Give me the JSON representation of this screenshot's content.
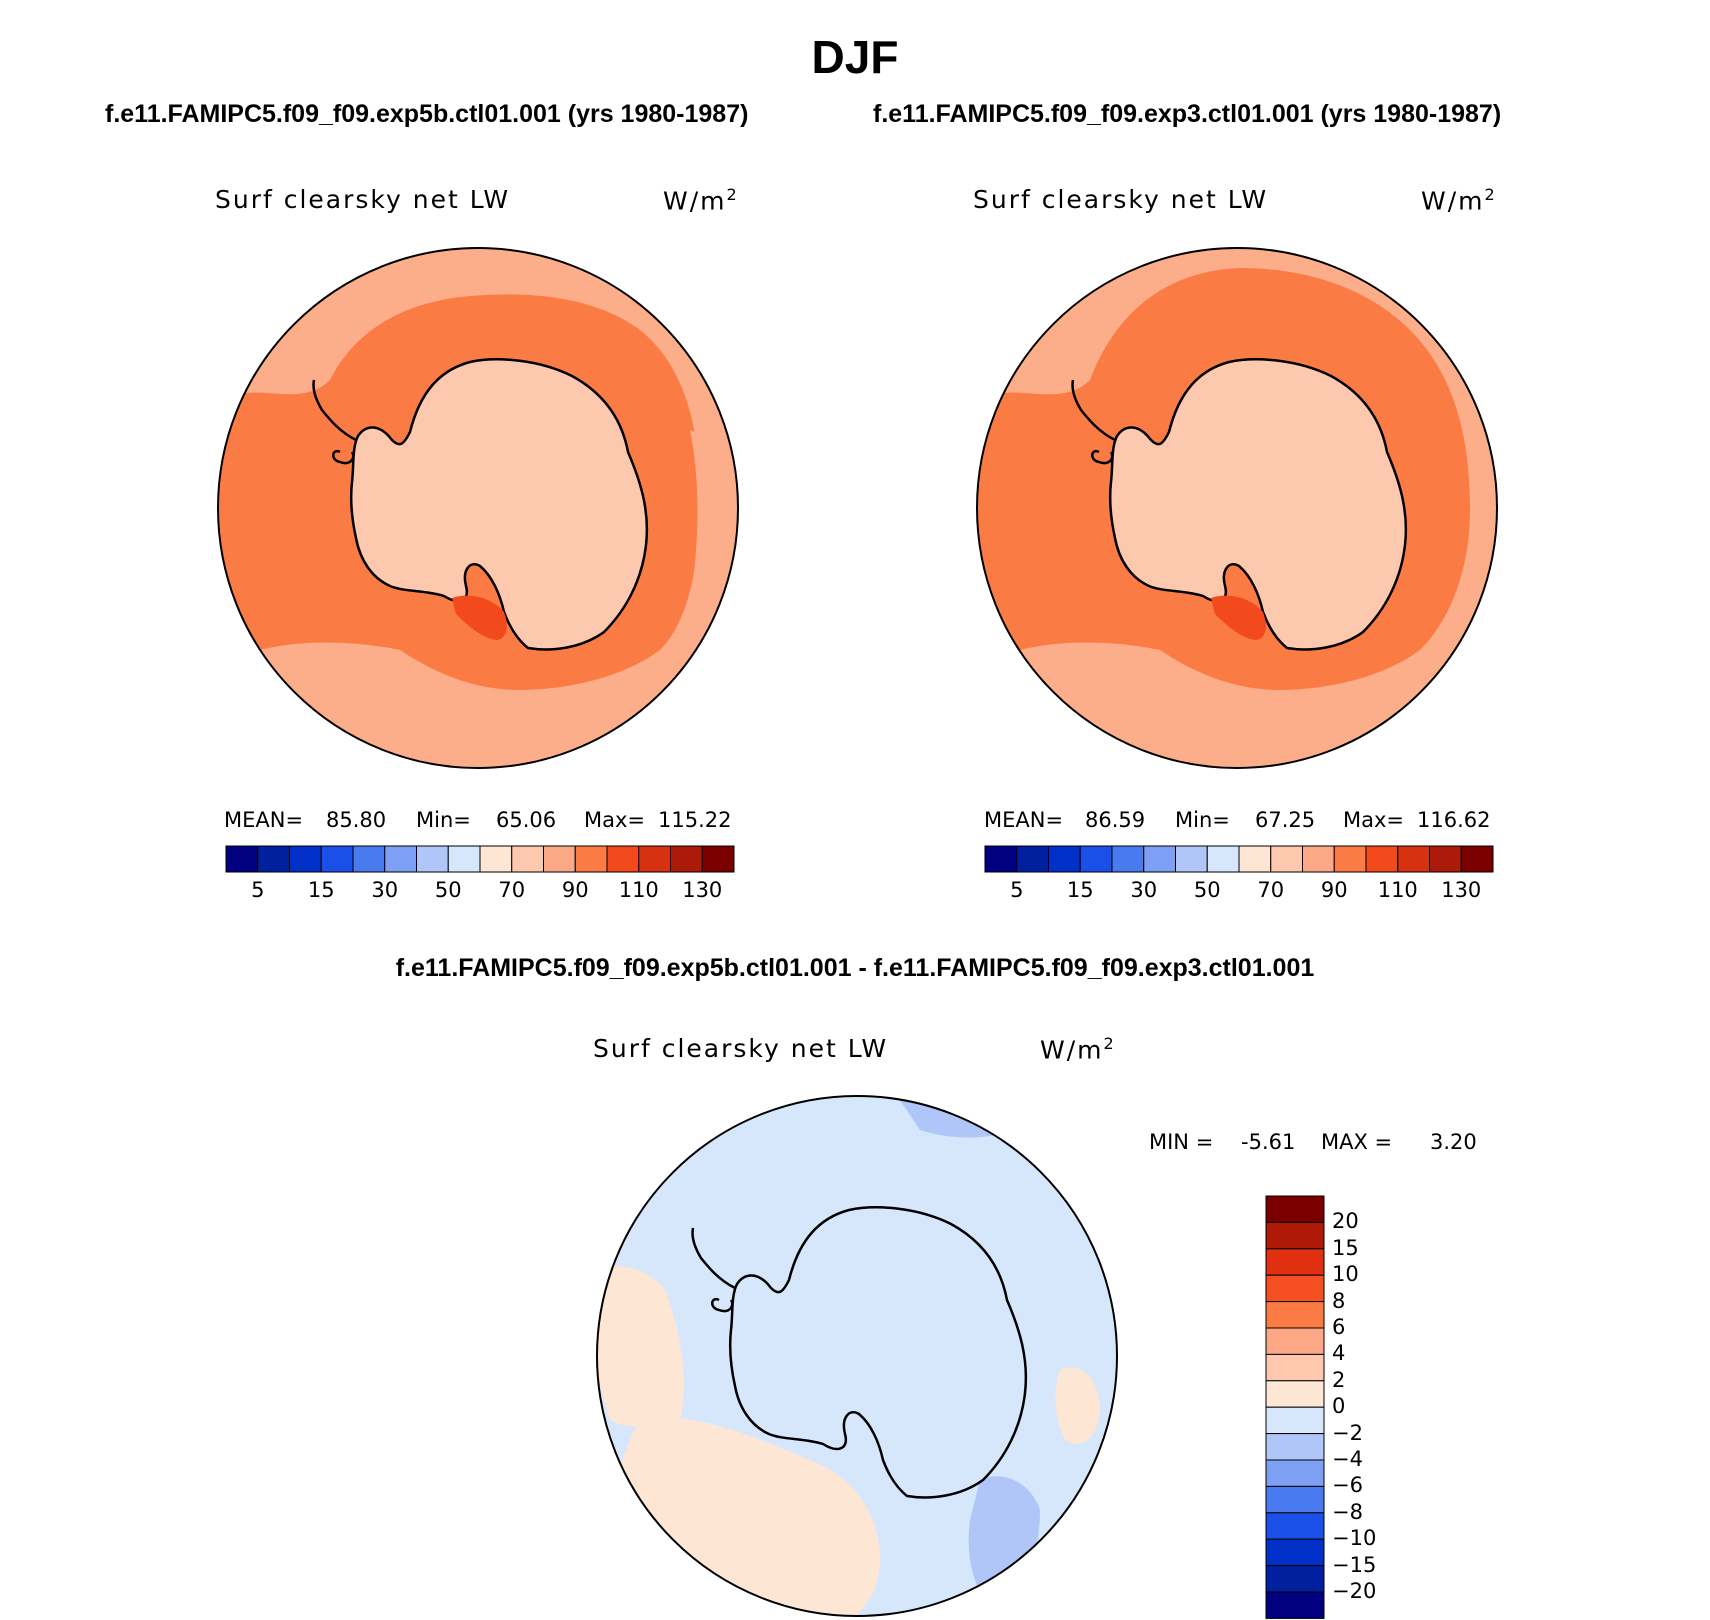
{
  "title": "DJF",
  "case_left_title": "f.e11.FAMIPC5.f09_f09.exp5b.ctl01.001 (yrs 1980-1987)",
  "case_right_title": "f.e11.FAMIPC5.f09_f09.exp3.ctl01.001 (yrs 1980-1987)",
  "diff_title": "f.e11.FAMIPC5.f09_f09.exp5b.ctl01.001 - f.e11.FAMIPC5.f09_f09.exp3.ctl01.001",
  "variable": "Surf clearsky net LW",
  "units_base": "W/m",
  "units_exp": "2",
  "panels": {
    "left": {
      "mean_label": "MEAN=",
      "mean_value": "85.80",
      "min_label": "Min=",
      "min_value": "65.06",
      "max_label": "Max=",
      "max_value": "115.22"
    },
    "right": {
      "mean_label": "MEAN=",
      "mean_value": "86.59",
      "min_label": "Min=",
      "min_value": "67.25",
      "max_label": "Max=",
      "max_value": "116.62"
    },
    "diff": {
      "min_label": "MIN =",
      "min_value": "-5.61",
      "max_label": "MAX =",
      "max_value": "3.20"
    }
  },
  "colorbar_abs": {
    "colors": [
      "#000080",
      "#0020a0",
      "#0030c8",
      "#1a4fe8",
      "#4a7af0",
      "#7ea0f4",
      "#b0c6f8",
      "#d6e6fb",
      "#fde6d4",
      "#fcc8ae",
      "#fba886",
      "#fb7b45",
      "#f24a1c",
      "#d63211",
      "#ac1a0a",
      "#7a0000"
    ],
    "tick_labels": [
      "5",
      "15",
      "30",
      "50",
      "70",
      "90",
      "110",
      "130"
    ]
  },
  "colorbar_diff": {
    "colors": [
      "#7a0000",
      "#b01808",
      "#e03010",
      "#f65022",
      "#fb7b45",
      "#fca886",
      "#fdc8ae",
      "#fde6d4",
      "#d6e6fb",
      "#b0c6f8",
      "#7ea0f4",
      "#4a7af0",
      "#1a4fe8",
      "#0030c8",
      "#0020a0",
      "#000080"
    ],
    "tick_labels": [
      "20",
      "15",
      "10",
      "8",
      "6",
      "4",
      "2",
      "0",
      "-2",
      "-4",
      "-6",
      "-8",
      "-10",
      "-15",
      "-20"
    ]
  },
  "colors": {
    "left_ocean": "#fcae8a",
    "left_band": "#fb7b45",
    "left_land": "#fcc8ae",
    "left_hot": "#f24a1c",
    "right_ocean": "#fcae8a",
    "right_band": "#fb7b45",
    "right_land": "#fcc8ae",
    "right_hot": "#f24a1c",
    "diff_bg": "#d6e6fb",
    "diff_warm": "#fde6d4",
    "diff_cool": "#b0c6f8"
  }
}
